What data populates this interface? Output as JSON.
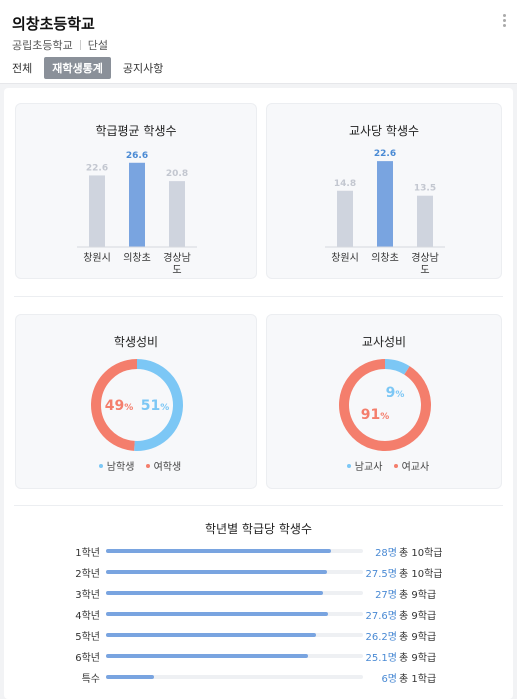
{
  "header": {
    "school_name": "의창초등학교",
    "school_type": "공립초등학교",
    "school_kind": "단설"
  },
  "tabs": [
    {
      "label": "전체",
      "active": false
    },
    {
      "label": "재학생통계",
      "active": true
    },
    {
      "label": "공지사항",
      "active": false
    }
  ],
  "colors": {
    "bar_highlight": "#79a4e0",
    "bar_default": "#cfd4de",
    "male": "#7cc7f5",
    "female": "#f47e6c"
  },
  "chart_data": [
    {
      "type": "bar",
      "title": "학급평균 학생수",
      "categories": [
        "창원시",
        "의창초",
        "경상남도"
      ],
      "category_lines": [
        [
          "창원시"
        ],
        [
          "의창초"
        ],
        [
          "경상남",
          "도"
        ]
      ],
      "values": [
        22.6,
        26.6,
        20.8
      ],
      "highlight_index": 1,
      "ylim": [
        0,
        30
      ]
    },
    {
      "type": "bar",
      "title": "교사당 학생수",
      "categories": [
        "창원시",
        "의창초",
        "경상남도"
      ],
      "category_lines": [
        [
          "창원시"
        ],
        [
          "의창초"
        ],
        [
          "경상남",
          "도"
        ]
      ],
      "values": [
        14.8,
        22.6,
        13.5
      ],
      "highlight_index": 1,
      "ylim": [
        0,
        25
      ]
    },
    {
      "type": "pie",
      "title": "학생성비",
      "labels": [
        "남학생",
        "여학생"
      ],
      "values": [
        51,
        49
      ],
      "value_labels": [
        "51",
        "49"
      ],
      "unit": "%"
    },
    {
      "type": "pie",
      "title": "교사성비",
      "labels": [
        "남교사",
        "여교사"
      ],
      "values": [
        9,
        91
      ],
      "value_labels": [
        "9",
        "91"
      ],
      "unit": "%"
    },
    {
      "type": "bar",
      "title": "학년별 학급당 학생수",
      "orientation": "horizontal",
      "categories": [
        "1학년",
        "2학년",
        "3학년",
        "4학년",
        "5학년",
        "6학년",
        "특수"
      ],
      "values": [
        28,
        27.5,
        27,
        27.6,
        26.2,
        25.1,
        6
      ],
      "value_labels": [
        "28",
        "27.5",
        "27",
        "27.6",
        "26.2",
        "25.1",
        "6"
      ],
      "value_unit": "명",
      "class_counts": [
        "총 10학급",
        "총 10학급",
        "총 9학급",
        "총 9학급",
        "총 9학급",
        "총 9학급",
        "총 1학급"
      ],
      "xlim": [
        0,
        32
      ]
    }
  ]
}
